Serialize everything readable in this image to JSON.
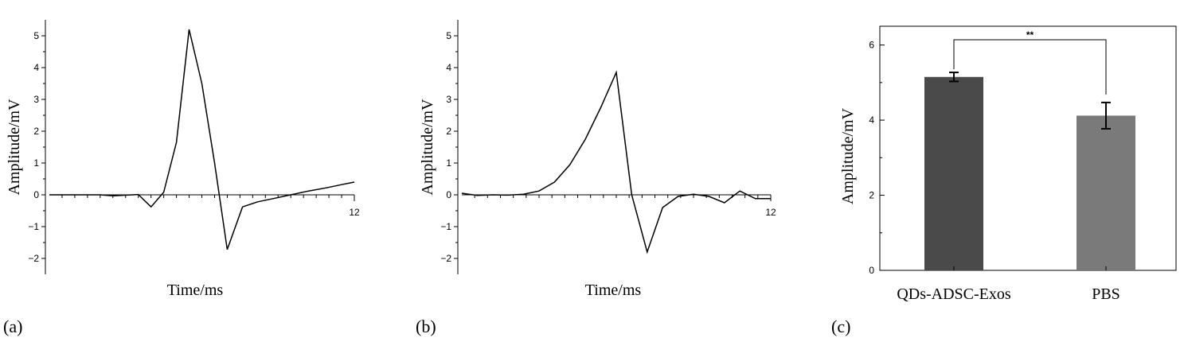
{
  "panels": {
    "a": {
      "label": "(a)"
    },
    "b": {
      "label": "(b)"
    },
    "c": {
      "label": "(c)"
    }
  },
  "chart_data": [
    {
      "type": "line",
      "panel": "a",
      "xlabel": "Time/ms",
      "ylabel": "Amplitude/mV",
      "xlim": [
        0,
        12
      ],
      "ylim": [
        -2.5,
        5.5
      ],
      "yticks": [
        -2,
        -1,
        0,
        1,
        2,
        3,
        4,
        5
      ],
      "yticklabels": [
        "−2",
        "−1",
        "0",
        "1",
        "2",
        "3",
        "4",
        "5"
      ],
      "xtick_label": "12",
      "x_minor_ticks": 24,
      "x": [
        0,
        2.0,
        2.5,
        3.5,
        4.0,
        4.5,
        5.0,
        5.5,
        6.0,
        6.5,
        7.0,
        7.6,
        8.2,
        8.8,
        9.5,
        10.2,
        10.9,
        11.5,
        12
      ],
      "y": [
        0,
        0,
        -0.03,
        0.01,
        -0.38,
        0.08,
        1.65,
        5.2,
        3.5,
        1.0,
        -1.72,
        -0.38,
        -0.22,
        -0.12,
        0.0,
        0.12,
        0.22,
        0.32,
        0.4
      ]
    },
    {
      "type": "line",
      "panel": "b",
      "xlabel": "Time/ms",
      "ylabel": "Amplitude/mV",
      "xlim": [
        0,
        12
      ],
      "ylim": [
        -2.5,
        5.5
      ],
      "yticks": [
        -2,
        -1,
        0,
        1,
        2,
        3,
        4,
        5
      ],
      "yticklabels": [
        "−2",
        "−1",
        "0",
        "1",
        "2",
        "3",
        "4",
        "5"
      ],
      "xtick_label": "12",
      "x_minor_ticks": 24,
      "x": [
        0,
        0.6,
        1.2,
        1.8,
        2.4,
        3.0,
        3.6,
        4.2,
        4.8,
        5.4,
        6.0,
        6.6,
        7.2,
        7.8,
        8.4,
        9.0,
        9.6,
        10.2,
        10.8,
        11.4,
        12
      ],
      "y": [
        0.05,
        -0.02,
        0.0,
        -0.01,
        0.02,
        0.12,
        0.4,
        0.95,
        1.75,
        2.75,
        3.85,
        0.0,
        -1.8,
        -0.4,
        -0.05,
        0.02,
        -0.05,
        -0.25,
        0.12,
        -0.12,
        -0.12
      ]
    },
    {
      "type": "bar",
      "panel": "c",
      "ylabel": "Amplitude/mV",
      "categories": [
        "QDs-ADSC-Exos",
        "PBS"
      ],
      "values": [
        5.15,
        4.12
      ],
      "errors": [
        0.12,
        0.35
      ],
      "colors": [
        "#4a4a4a",
        "#7a7a7a"
      ],
      "ylim": [
        0,
        6.5
      ],
      "yticks": [
        0,
        2,
        4,
        6
      ],
      "yticklabels": [
        "0",
        "2",
        "4",
        "6"
      ],
      "significance": "**"
    }
  ]
}
